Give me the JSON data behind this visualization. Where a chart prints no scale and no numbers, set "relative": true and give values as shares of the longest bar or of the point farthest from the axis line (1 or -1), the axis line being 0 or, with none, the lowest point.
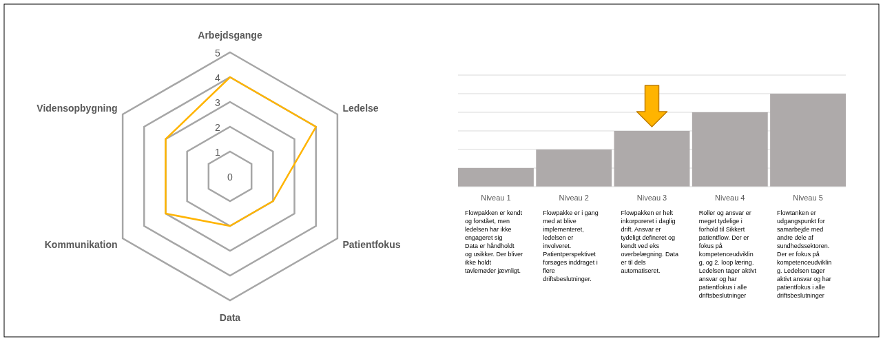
{
  "chart_data": [
    {
      "type": "radar",
      "categories": [
        "Arbejdsgange",
        "Ledelse",
        "Patientfokus",
        "Data",
        "Kommunikation",
        "Vidensopbygning"
      ],
      "ylim": [
        0,
        5
      ],
      "yticks": [
        0,
        1,
        2,
        3,
        4,
        5
      ],
      "grid": true,
      "series": [
        {
          "color": "#ffb400",
          "values": [
            4,
            4,
            2,
            2,
            3,
            3
          ]
        }
      ]
    },
    {
      "type": "bar",
      "relative": true,
      "grid": "y",
      "categories": [
        "Niveau 1",
        "Niveau 2",
        "Niveau 3",
        "Niveau 4",
        "Niveau 5"
      ],
      "series": [
        {
          "color": "#aeaaaa",
          "values": [
            0.2,
            0.4,
            0.6,
            0.8,
            1
          ]
        }
      ],
      "annotations": [
        "Flowpakken er kendt\nog forstået, men\nledelsen har ikke\nengageret sig\nData er håndholdt\nog usikker. Der bliver\nikke holdt\ntavlemøder jævnligt.",
        "Flowpakke er i gang\nmed at blive\nimplementeret,\nledelsen er\ninvolveret.\nPatientperspektivet\nforsøges inddraget i\nflere\ndriftsbeslutninger.",
        "Flowpakken er helt\ninkorporeret i daglig\ndrift.  Ansvar er\ntydeligt defineret og\nkendt ved eks\noverbelægning. Data\ner til dels\nautomatiseret.",
        "Roller og ansvar er\nmeget tydelige i\nforhold til Sikkert\npatientflow. Der er\nfokus på\nkompetenceudviklin\ng, og 2. loop læring.\nLedelsen tager aktivt\nansvar og har\npatientfokus i alle\ndriftsbeslutninger",
        "Flowtanken er\nudgangspunkt  for\nsamarbejde med\nandre dele af\nsundhedssektoren.\nDer er fokus på\nkompetenceudviklin\ng. Ledelsen tager\naktivt ansvar og har\npatientfokus i alle\ndriftsbeslutninger"
      ]
    }
  ]
}
